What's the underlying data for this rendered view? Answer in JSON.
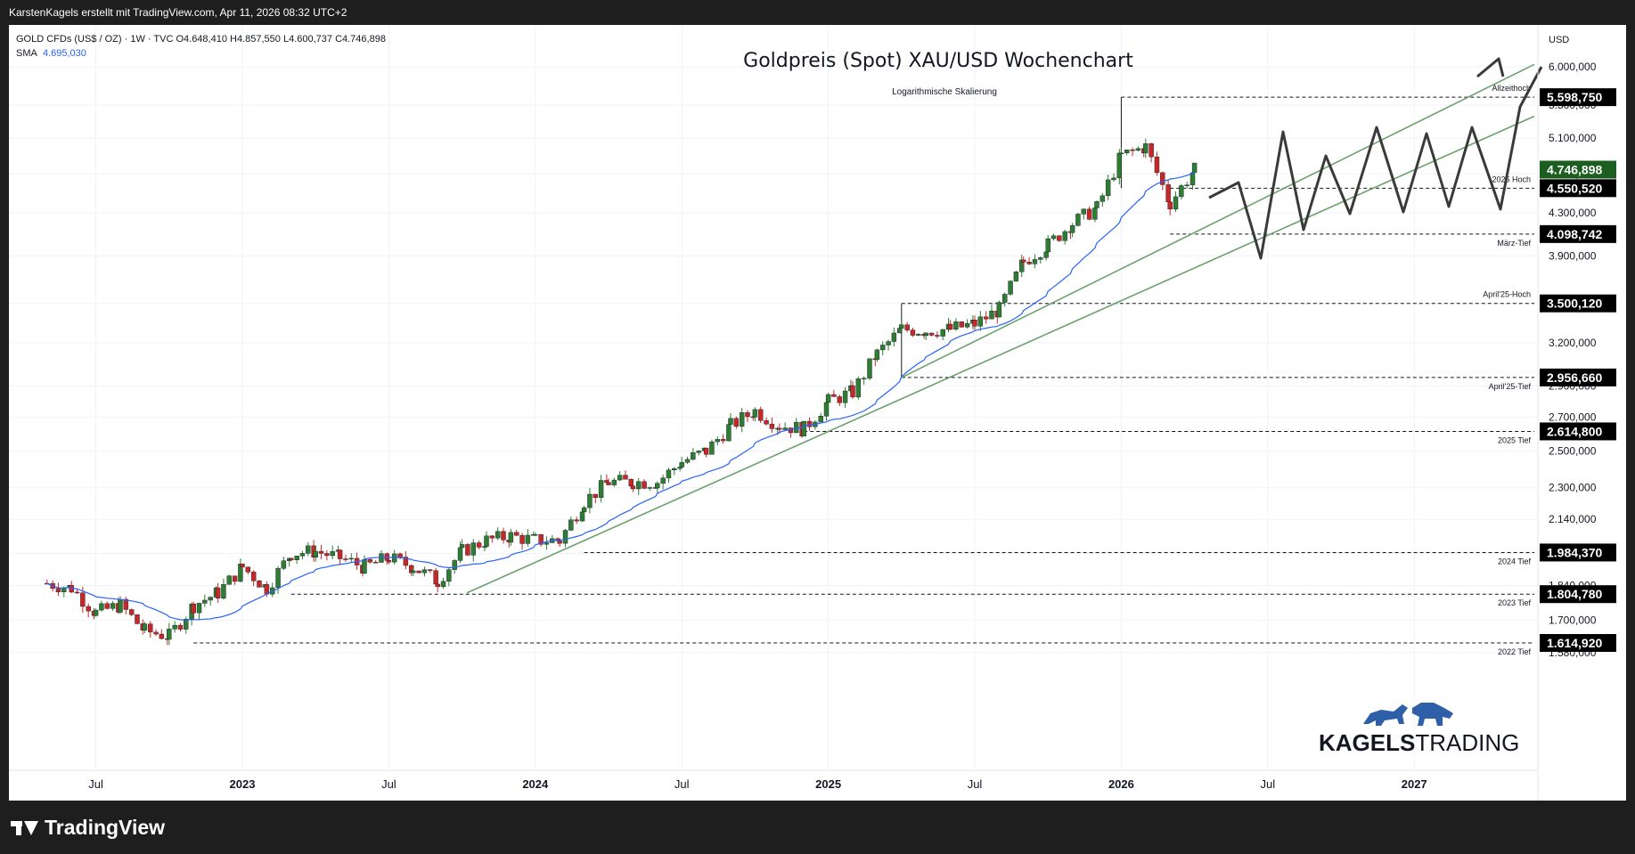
{
  "header": {
    "attribution": "KarstenKagels erstellt mit TradingView.com, Apr 11, 2026 08:32 UTC+2"
  },
  "legend": {
    "symbol_line": "GOLD CFDs (US$ / OZ) · 1W · TVC  O4.648,410  H4.857,550  L4.600,737  C4.746,898",
    "sma_label": "SMA",
    "sma_value": "4.695,030"
  },
  "footer": {
    "brand": "TradingView"
  },
  "watermark": {
    "brand_bold": "KAGELS",
    "brand_light": "TRADING"
  },
  "colors": {
    "up": "#2e7d32",
    "down": "#c62828",
    "sma": "#2962ff",
    "trendline": "#6ca06c",
    "projection": "#3a3a3a",
    "price_label_bg": "#000000",
    "last_price_bg": "#1b5e20"
  },
  "chart_data": {
    "type": "candlestick",
    "title": "Goldpreis (Spot) XAU/USD Wochenchart",
    "subtitle": "Logarithmische Skalierung",
    "currency": "USD",
    "scale": "log",
    "y_ticks": [
      "6.000,000",
      "5.500,000",
      "5.100,000",
      "4.700,000",
      "4.300,000",
      "3.900,000",
      "3.500,000",
      "3.200,000",
      "2.900,000",
      "2.700,000",
      "2.500,000",
      "2.300,000",
      "2.140,000",
      "1.980,000",
      "1.840,000",
      "1.700,000",
      "1.580,000"
    ],
    "x_ticks": [
      "Jul",
      "2023",
      "Jul",
      "2024",
      "Jul",
      "2025",
      "Jul",
      "2026",
      "Jul",
      "2027"
    ],
    "x_ticks_bold": [
      "2023",
      "2024",
      "2025",
      "2026",
      "2027"
    ],
    "levels": [
      {
        "price": "5.598,750",
        "label": "Allzeithoch"
      },
      {
        "price": "4.550,520",
        "label": "2025 Hoch"
      },
      {
        "price": "4.098,742",
        "label": "März-Tief"
      },
      {
        "price": "3.500,120",
        "label": "April'25-Hoch"
      },
      {
        "price": "2.956,660",
        "label": "April'25-Tief"
      },
      {
        "price": "2.614,800",
        "label": "2025 Tief"
      },
      {
        "price": "1.984,370",
        "label": "2024 Tief"
      },
      {
        "price": "1.804,780",
        "label": "2023 Tief"
      },
      {
        "price": "1.614,920",
        "label": "2022 Tief"
      }
    ],
    "last_price": "4.746,898",
    "sma_period_label": "SMA",
    "sma_last": "4.695,030",
    "price_path": [
      [
        "2022-05",
        1850
      ],
      [
        "2022-06",
        1830
      ],
      [
        "2022-07",
        1730
      ],
      [
        "2022-08",
        1760
      ],
      [
        "2022-09",
        1660
      ],
      [
        "2022-10",
        1640
      ],
      [
        "2022-11",
        1760
      ],
      [
        "2022-12",
        1810
      ],
      [
        "2023-01",
        1920
      ],
      [
        "2023-02",
        1830
      ],
      [
        "2023-03",
        1980
      ],
      [
        "2023-04",
        1990
      ],
      [
        "2023-05",
        1960
      ],
      [
        "2023-06",
        1920
      ],
      [
        "2023-07",
        1960
      ],
      [
        "2023-08",
        1920
      ],
      [
        "2023-09",
        1860
      ],
      [
        "2023-10",
        1990
      ],
      [
        "2023-11",
        2040
      ],
      [
        "2023-12",
        2060
      ],
      [
        "2024-01",
        2040
      ],
      [
        "2024-02",
        2040
      ],
      [
        "2024-03",
        2230
      ],
      [
        "2024-04",
        2330
      ],
      [
        "2024-05",
        2330
      ],
      [
        "2024-06",
        2330
      ],
      [
        "2024-07",
        2440
      ],
      [
        "2024-08",
        2500
      ],
      [
        "2024-09",
        2650
      ],
      [
        "2024-10",
        2740
      ],
      [
        "2024-11",
        2650
      ],
      [
        "2024-12",
        2630
      ],
      [
        "2025-01",
        2800
      ],
      [
        "2025-02",
        2860
      ],
      [
        "2025-03",
        3120
      ],
      [
        "2025-04",
        3300
      ],
      [
        "2025-05",
        3290
      ],
      [
        "2025-06",
        3300
      ],
      [
        "2025-07",
        3340
      ],
      [
        "2025-08",
        3450
      ],
      [
        "2025-09",
        3850
      ],
      [
        "2025-10",
        4000
      ],
      [
        "2025-11",
        4200
      ],
      [
        "2025-12",
        4350
      ],
      [
        "2026-01",
        4900
      ],
      [
        "2026-02",
        5000
      ],
      [
        "2026-03",
        4400
      ],
      [
        "2026-04",
        4747
      ]
    ]
  }
}
